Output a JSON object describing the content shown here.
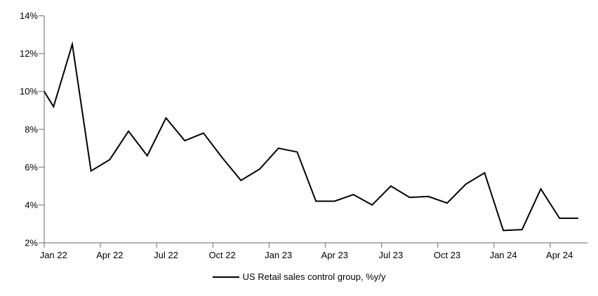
{
  "chart_data": {
    "type": "line",
    "title": "",
    "legend": "US Retail sales control group, %y/y",
    "legend_position": "bottom-center",
    "grid": "off",
    "axis_color": "#808080",
    "text_color": "#000000",
    "background": "#ffffff",
    "y_axis": {
      "unit": "%",
      "min": 2,
      "max": 14,
      "step": 2,
      "tick_labels": [
        "2%",
        "4%",
        "6%",
        "8%",
        "10%",
        "12%",
        "14%"
      ]
    },
    "x_axis": {
      "tick_labels": [
        "Jan 22",
        "Apr 22",
        "Jul 22",
        "Oct 22",
        "Jan 23",
        "Apr 23",
        "Jul 23",
        "Oct 23",
        "Jan 24",
        "Apr 24"
      ],
      "months_between_ticks": 3,
      "first_visible_month": "Jan 22"
    },
    "series": [
      {
        "name": "US Retail sales control group, %y/y",
        "color": "#000000",
        "line_width": 2,
        "x": [
          "Dec 21",
          "Jan 22",
          "Feb 22",
          "Mar 22",
          "Apr 22",
          "May 22",
          "Jun 22",
          "Jul 22",
          "Aug 22",
          "Sep 22",
          "Oct 22",
          "Nov 22",
          "Dec 22",
          "Jan 23",
          "Feb 23",
          "Mar 23",
          "Apr 23",
          "May 23",
          "Jun 23",
          "Jul 23",
          "Aug 23",
          "Sep 23",
          "Oct 23",
          "Nov 23",
          "Dec 23",
          "Jan 24",
          "Feb 24",
          "Mar 24",
          "Apr 24",
          "May 24"
        ],
        "values": [
          10.8,
          9.2,
          12.5,
          5.8,
          6.4,
          7.9,
          6.6,
          8.6,
          7.4,
          7.8,
          6.5,
          5.3,
          5.9,
          7.0,
          6.8,
          4.2,
          4.2,
          4.55,
          4.0,
          5.0,
          4.4,
          4.45,
          4.1,
          5.1,
          5.7,
          2.65,
          2.7,
          4.85,
          3.3,
          3.3
        ]
      }
    ]
  }
}
